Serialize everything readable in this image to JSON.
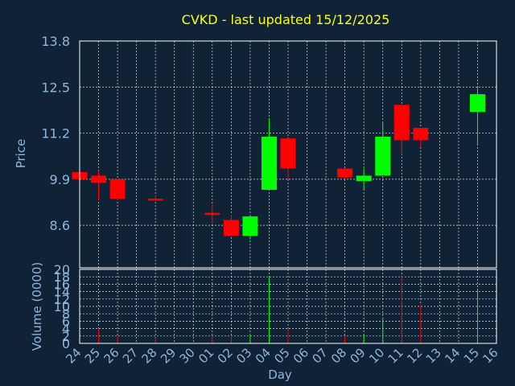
{
  "chart_data": [
    {
      "type": "candlestick",
      "title": "CVKD - last updated 15/12/2025",
      "ylabel": "Price",
      "ylim": [
        7.4,
        13.8
      ],
      "yticks": [
        "13.8",
        "12.5",
        "11.2",
        "9.9",
        "8.6"
      ],
      "grid": true,
      "up_color": "#00ff00",
      "down_color": "#ff0000",
      "candles": [
        {
          "day": "24",
          "open": 10.1,
          "high": 10.15,
          "low": 9.9,
          "close": 9.9
        },
        {
          "day": "25",
          "open": 10.0,
          "high": 10.15,
          "low": 9.3,
          "close": 9.8
        },
        {
          "day": "26",
          "open": 9.9,
          "high": 9.9,
          "low": 9.3,
          "close": 9.35
        },
        {
          "day": "28",
          "open": 9.35,
          "high": 9.45,
          "low": 9.3,
          "close": 9.3
        },
        {
          "day": "01",
          "open": 8.95,
          "high": 9.2,
          "low": 8.65,
          "close": 8.9
        },
        {
          "day": "02",
          "open": 8.75,
          "high": 8.9,
          "low": 8.3,
          "close": 8.3
        },
        {
          "day": "03",
          "open": 8.3,
          "high": 8.9,
          "low": 8.2,
          "close": 8.85
        },
        {
          "day": "04",
          "open": 9.6,
          "high": 11.6,
          "low": 9.6,
          "close": 11.1
        },
        {
          "day": "05",
          "open": 11.05,
          "high": 11.05,
          "low": 9.9,
          "close": 10.2
        },
        {
          "day": "08",
          "open": 10.2,
          "high": 10.2,
          "low": 9.9,
          "close": 9.95
        },
        {
          "day": "09",
          "open": 9.85,
          "high": 10.2,
          "low": 9.6,
          "close": 10.0
        },
        {
          "day": "10",
          "open": 10.0,
          "high": 11.5,
          "low": 10.0,
          "close": 11.1
        },
        {
          "day": "11",
          "open": 12.0,
          "high": 12.0,
          "low": 10.6,
          "close": 11.0
        },
        {
          "day": "12",
          "open": 11.35,
          "high": 11.35,
          "low": 10.8,
          "close": 11.0
        },
        {
          "day": "15",
          "open": 11.8,
          "high": 12.5,
          "low": 10.9,
          "close": 12.3
        }
      ]
    },
    {
      "type": "bar",
      "ylabel": "Volume (0000)",
      "ylim": [
        0,
        20
      ],
      "yticks": [
        "20",
        "18",
        "16",
        "14",
        "12",
        "10",
        "8",
        "6",
        "4",
        "2",
        "0"
      ],
      "xlabel": "Day",
      "categories": [
        "24",
        "25",
        "26",
        "27",
        "28",
        "29",
        "30",
        "01",
        "02",
        "03",
        "04",
        "05",
        "06",
        "07",
        "08",
        "09",
        "10",
        "11",
        "12",
        "13",
        "14",
        "15",
        "16"
      ],
      "bars": [
        {
          "day": "25",
          "value": 4,
          "color": "#ff0000"
        },
        {
          "day": "26",
          "value": 2,
          "color": "#ff0000"
        },
        {
          "day": "28",
          "value": 1.5,
          "color": "#ff0000"
        },
        {
          "day": "01",
          "value": 2,
          "color": "#ff0000"
        },
        {
          "day": "02",
          "value": 2,
          "color": "#ff0000"
        },
        {
          "day": "03",
          "value": 2.5,
          "color": "#00ff00"
        },
        {
          "day": "04",
          "value": 18,
          "color": "#00ff00"
        },
        {
          "day": "05",
          "value": 4,
          "color": "#ff0000"
        },
        {
          "day": "08",
          "value": 2,
          "color": "#ff0000"
        },
        {
          "day": "09",
          "value": 2.5,
          "color": "#00ff00"
        },
        {
          "day": "10",
          "value": 7,
          "color": "#00ff00"
        },
        {
          "day": "11",
          "value": 18.5,
          "color": "#ff0000"
        },
        {
          "day": "12",
          "value": 10.5,
          "color": "#ff0000"
        },
        {
          "day": "15",
          "value": 14.5,
          "color": "#00ff00"
        }
      ]
    }
  ]
}
